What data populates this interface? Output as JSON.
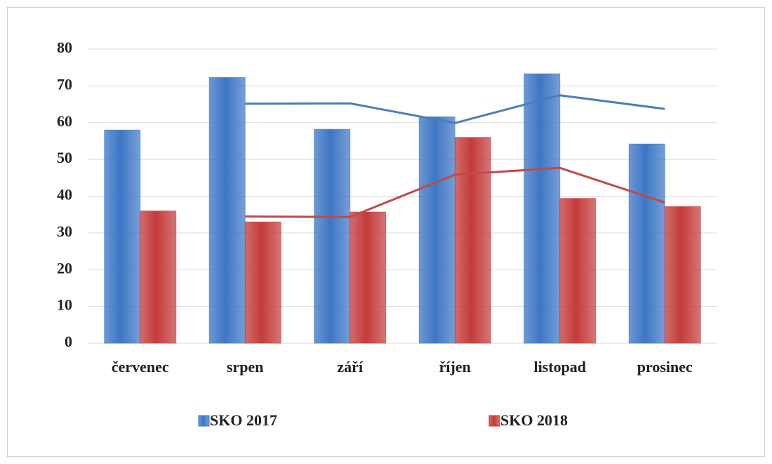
{
  "chart_data": {
    "type": "bar",
    "categories": [
      "červenec",
      "srpen",
      "září",
      "říjen",
      "listopad",
      "prosinec"
    ],
    "series": [
      {
        "name": "SKO 2017",
        "color": "#3d76c5",
        "trend_color": "#4a7ebb",
        "values": [
          58,
          72.3,
          58.2,
          61.6,
          73.3,
          54.2
        ],
        "trend_values": [
          null,
          65.15,
          65.25,
          59.9,
          67.45,
          63.75
        ]
      },
      {
        "name": "SKO 2018",
        "color": "#c43b3b",
        "trend_color": "#be4b48",
        "values": [
          36,
          33,
          35.7,
          56,
          39.4,
          37.2
        ],
        "trend_values": [
          null,
          34.5,
          34.35,
          45.85,
          47.7,
          38.3
        ]
      }
    ],
    "ylim": [
      0,
      80
    ],
    "yticks": [
      0,
      10,
      20,
      30,
      40,
      50,
      60,
      70,
      80
    ],
    "grid": true,
    "legend": "bottom"
  }
}
